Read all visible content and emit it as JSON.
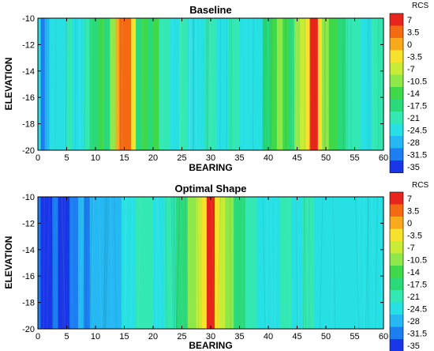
{
  "colorbar": {
    "title": "RCS",
    "levels": [
      7,
      3.5,
      0,
      -3.5,
      -7,
      -10.5,
      -14,
      -17.5,
      -21,
      -24.5,
      -28,
      -31.5,
      -35
    ],
    "colors": [
      "#e8251c",
      "#f46a12",
      "#f9a91c",
      "#f6e22a",
      "#c8ec36",
      "#8fe84a",
      "#3fd84a",
      "#2ad97a",
      "#33e8b2",
      "#27e0e4",
      "#25b8f2",
      "#1c7ef0",
      "#1936e8"
    ]
  },
  "chart_data": [
    {
      "type": "heatmap",
      "title": "Baseline",
      "xlabel": "BEARING",
      "ylabel": "ELEVATION",
      "xlim": [
        0,
        60
      ],
      "ylim": [
        -20,
        -10
      ],
      "xticks": [
        0,
        5,
        10,
        15,
        20,
        25,
        30,
        35,
        40,
        45,
        50,
        55,
        60
      ],
      "yticks": [
        -10,
        -12,
        -14,
        -16,
        -18,
        -20
      ],
      "bands": [
        {
          "x0": 0,
          "x1": 0.5,
          "level": -24.5
        },
        {
          "x0": 0.5,
          "x1": 1.2,
          "level": -31.5
        },
        {
          "x0": 1.2,
          "x1": 2,
          "level": -28
        },
        {
          "x0": 2,
          "x1": 5,
          "level": -24.5
        },
        {
          "x0": 5,
          "x1": 6,
          "level": -21
        },
        {
          "x0": 6,
          "x1": 8,
          "level": -24.5
        },
        {
          "x0": 8,
          "x1": 9,
          "level": -21
        },
        {
          "x0": 9,
          "x1": 10.5,
          "level": -17.5
        },
        {
          "x0": 10.5,
          "x1": 11.5,
          "level": -14
        },
        {
          "x0": 11.5,
          "x1": 12.5,
          "level": -17.5
        },
        {
          "x0": 12.5,
          "x1": 13.5,
          "level": -10.5
        },
        {
          "x0": 13.5,
          "x1": 14.2,
          "level": 0
        },
        {
          "x0": 14.2,
          "x1": 16.2,
          "level": 3.5
        },
        {
          "x0": 16.2,
          "x1": 17,
          "level": -3.5
        },
        {
          "x0": 17,
          "x1": 18,
          "level": -17.5
        },
        {
          "x0": 18,
          "x1": 19,
          "level": -14
        },
        {
          "x0": 19,
          "x1": 20,
          "level": -17.5
        },
        {
          "x0": 20,
          "x1": 21,
          "level": -14
        },
        {
          "x0": 21,
          "x1": 23,
          "level": -21
        },
        {
          "x0": 23,
          "x1": 24.5,
          "level": -24.5
        },
        {
          "x0": 24.5,
          "x1": 26,
          "level": -21
        },
        {
          "x0": 26,
          "x1": 29,
          "level": -24.5
        },
        {
          "x0": 29,
          "x1": 31,
          "level": -21
        },
        {
          "x0": 31,
          "x1": 33,
          "level": -24.5
        },
        {
          "x0": 33,
          "x1": 35,
          "level": -21
        },
        {
          "x0": 35,
          "x1": 39,
          "level": -24.5
        },
        {
          "x0": 39,
          "x1": 40.5,
          "level": -17.5
        },
        {
          "x0": 40.5,
          "x1": 41.5,
          "level": -14
        },
        {
          "x0": 41.5,
          "x1": 42.5,
          "level": -10.5
        },
        {
          "x0": 42.5,
          "x1": 43.5,
          "level": -14
        },
        {
          "x0": 43.5,
          "x1": 44.5,
          "level": -17.5
        },
        {
          "x0": 44.5,
          "x1": 45.5,
          "level": -10.5
        },
        {
          "x0": 45.5,
          "x1": 46.5,
          "level": -7
        },
        {
          "x0": 46.5,
          "x1": 47.2,
          "level": -3.5
        },
        {
          "x0": 47.2,
          "x1": 48.6,
          "level": 7
        },
        {
          "x0": 48.6,
          "x1": 49.3,
          "level": -3.5
        },
        {
          "x0": 49.3,
          "x1": 50.5,
          "level": -10.5
        },
        {
          "x0": 50.5,
          "x1": 52,
          "level": -14
        },
        {
          "x0": 52,
          "x1": 53.5,
          "level": -17.5
        },
        {
          "x0": 53.5,
          "x1": 56,
          "level": -21
        },
        {
          "x0": 56,
          "x1": 58,
          "level": -24.5
        },
        {
          "x0": 58,
          "x1": 60,
          "level": -21
        }
      ]
    },
    {
      "type": "heatmap",
      "title": "Optimal Shape",
      "xlabel": "BEARING",
      "ylabel": "ELEVATION",
      "xlim": [
        0,
        60
      ],
      "ylim": [
        -20,
        -10
      ],
      "xticks": [
        0,
        5,
        10,
        15,
        20,
        25,
        30,
        35,
        40,
        45,
        50,
        55,
        60
      ],
      "yticks": [
        -10,
        -12,
        -14,
        -16,
        -18,
        -20
      ],
      "bands": [
        {
          "x0": 0,
          "x1": 0.5,
          "level": -31.5
        },
        {
          "x0": 0.5,
          "x1": 2.5,
          "level": -35
        },
        {
          "x0": 2.5,
          "x1": 3.5,
          "level": -31.5
        },
        {
          "x0": 3.5,
          "x1": 5.5,
          "level": -35
        },
        {
          "x0": 5.5,
          "x1": 7,
          "level": -31.5
        },
        {
          "x0": 7,
          "x1": 8,
          "level": -28
        },
        {
          "x0": 8,
          "x1": 9,
          "level": -31.5
        },
        {
          "x0": 9,
          "x1": 14.5,
          "level": -28
        },
        {
          "x0": 14.5,
          "x1": 17,
          "level": -24.5
        },
        {
          "x0": 17,
          "x1": 20,
          "level": -21
        },
        {
          "x0": 20,
          "x1": 22,
          "level": -24.5
        },
        {
          "x0": 22,
          "x1": 24,
          "level": -21
        },
        {
          "x0": 24,
          "x1": 26,
          "level": -17.5
        },
        {
          "x0": 26,
          "x1": 27.5,
          "level": -10.5
        },
        {
          "x0": 27.5,
          "x1": 28.5,
          "level": -7
        },
        {
          "x0": 28.5,
          "x1": 29.3,
          "level": -3.5
        },
        {
          "x0": 29.3,
          "x1": 30.7,
          "level": 7
        },
        {
          "x0": 30.7,
          "x1": 31.5,
          "level": -3.5
        },
        {
          "x0": 31.5,
          "x1": 32.5,
          "level": -7
        },
        {
          "x0": 32.5,
          "x1": 34,
          "level": -10.5
        },
        {
          "x0": 34,
          "x1": 36,
          "level": -17.5
        },
        {
          "x0": 36,
          "x1": 38,
          "level": -21
        },
        {
          "x0": 38,
          "x1": 42,
          "level": -24.5
        },
        {
          "x0": 42,
          "x1": 44,
          "level": -21
        },
        {
          "x0": 44,
          "x1": 46,
          "level": -24.5
        },
        {
          "x0": 46,
          "x1": 48,
          "level": -21
        },
        {
          "x0": 48,
          "x1": 60,
          "level": -24.5
        }
      ]
    }
  ]
}
